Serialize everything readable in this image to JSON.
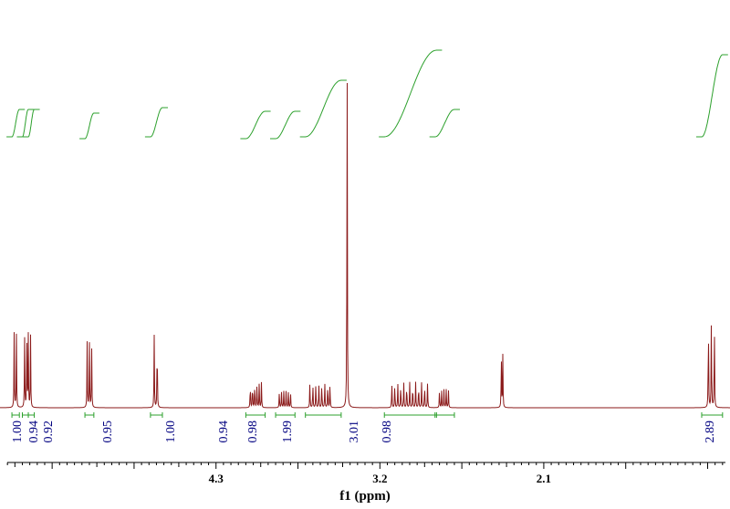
{
  "chart_data": {
    "type": "line",
    "title": "",
    "xlabel": "f1 (ppm)",
    "ylabel": "",
    "x_axis_reversed": true,
    "xlim": [
      0.85,
      5.75
    ],
    "tick_labels": [
      "4.3",
      "3.2",
      "2.1"
    ],
    "tick_values": [
      4.3,
      3.2,
      2.1
    ],
    "colors": {
      "spectrum": "#8b1a1a",
      "integral": "#2ca02c",
      "integral_label": "#000080",
      "axis": "#000000"
    },
    "peaks": [
      {
        "center": 5.64,
        "lines": [
          5.655,
          5.64
        ],
        "height": 0.205
      },
      {
        "center": 5.56,
        "lines": [
          5.585,
          5.57,
          5.56,
          5.545
        ],
        "height": 0.2
      },
      {
        "center": 5.15,
        "lines": [
          5.165,
          5.15,
          5.135
        ],
        "height": 0.18
      },
      {
        "center": 4.7,
        "lines": [
          4.715,
          4.695
        ],
        "height": 0.2
      },
      {
        "center": 4.03,
        "lines": [
          4.07,
          4.055,
          4.04,
          4.025,
          4.01,
          3.995
        ],
        "height": 0.07
      },
      {
        "center": 3.84,
        "lines": [
          3.875,
          3.86,
          3.845,
          3.83,
          3.815,
          3.8
        ],
        "height": 0.045
      },
      {
        "center": 3.6,
        "lines": [
          3.67,
          3.65,
          3.63,
          3.61,
          3.59,
          3.57,
          3.55,
          3.535
        ],
        "height": 0.07
      },
      {
        "center": 3.42,
        "lines": [
          3.42
        ],
        "height": 1.0
      },
      {
        "center": 2.96,
        "lines": [
          3.12,
          3.1,
          3.08,
          3.06,
          3.04,
          3.02,
          3.0,
          2.98,
          2.96,
          2.94,
          2.92,
          2.9,
          2.88
        ],
        "height": 0.07
      },
      {
        "center": 2.77,
        "lines": [
          2.8,
          2.785,
          2.77,
          2.755,
          2.74
        ],
        "height": 0.05
      },
      {
        "center": 2.38,
        "lines": [
          2.385,
          2.375
        ],
        "height": 0.145
      },
      {
        "center": 0.97,
        "lines": [
          0.995,
          0.975,
          0.955
        ],
        "height": 0.25
      }
    ],
    "integrals": [
      {
        "from": 5.67,
        "to": 5.62,
        "value": "1.00"
      },
      {
        "from": 5.6,
        "to": 5.56,
        "value": "0.94"
      },
      {
        "from": 5.56,
        "to": 5.52,
        "value": "0.92"
      },
      {
        "from": 5.18,
        "to": 5.12,
        "value": "0.95"
      },
      {
        "from": 4.74,
        "to": 4.66,
        "value": "1.00"
      },
      {
        "from": 4.1,
        "to": 3.97,
        "value": "0.94"
      },
      {
        "from": 3.9,
        "to": 3.77,
        "value": "0.98"
      },
      {
        "from": 3.7,
        "to": 3.46,
        "value": "1.99"
      },
      {
        "from": 3.17,
        "to": 2.82,
        "value": "3.01"
      },
      {
        "from": 2.83,
        "to": 2.7,
        "value": "0.98"
      },
      {
        "from": 1.04,
        "to": 0.9,
        "value": "2.89"
      }
    ]
  }
}
